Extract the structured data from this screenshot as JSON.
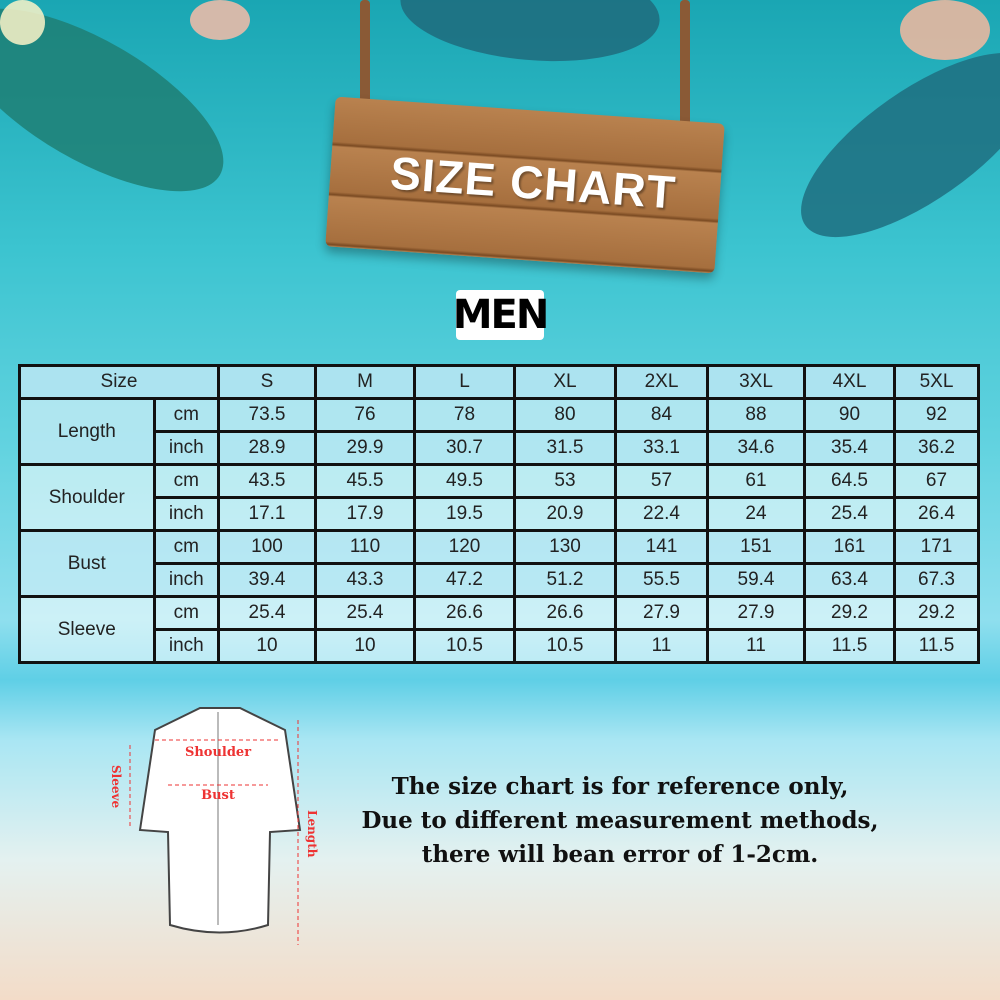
{
  "sign_title": "SIZE CHART",
  "section_title": "MEN",
  "table": {
    "size_header": "Size",
    "sizes": [
      "S",
      "M",
      "L",
      "XL",
      "2XL",
      "3XL",
      "4XL",
      "5XL"
    ],
    "rows": [
      {
        "label": "Length",
        "cm": [
          "73.5",
          "76",
          "78",
          "80",
          "84",
          "88",
          "90",
          "92"
        ],
        "inch": [
          "28.9",
          "29.9",
          "30.7",
          "31.5",
          "33.1",
          "34.6",
          "35.4",
          "36.2"
        ]
      },
      {
        "label": "Shoulder",
        "cm": [
          "43.5",
          "45.5",
          "49.5",
          "53",
          "57",
          "61",
          "64.5",
          "67"
        ],
        "inch": [
          "17.1",
          "17.9",
          "19.5",
          "20.9",
          "22.4",
          "24",
          "25.4",
          "26.4"
        ]
      },
      {
        "label": "Bust",
        "cm": [
          "100",
          "110",
          "120",
          "130",
          "141",
          "151",
          "161",
          "171"
        ],
        "inch": [
          "39.4",
          "43.3",
          "47.2",
          "51.2",
          "55.5",
          "59.4",
          "63.4",
          "67.3"
        ]
      },
      {
        "label": "Sleeve",
        "cm": [
          "25.4",
          "25.4",
          "26.6",
          "26.6",
          "27.9",
          "27.9",
          "29.2",
          "29.2"
        ],
        "inch": [
          "10",
          "10",
          "10.5",
          "10.5",
          "11",
          "11",
          "11.5",
          "11.5"
        ]
      }
    ],
    "unit_cm": "cm",
    "unit_inch": "inch"
  },
  "diagram": {
    "shoulder": "Shoulder",
    "bust": "Bust",
    "sleeve": "Sleeve",
    "length": "Length"
  },
  "note": [
    "The size chart is for reference only,",
    "Due to different measurement methods,",
    "there will bean error of 1-2cm."
  ]
}
